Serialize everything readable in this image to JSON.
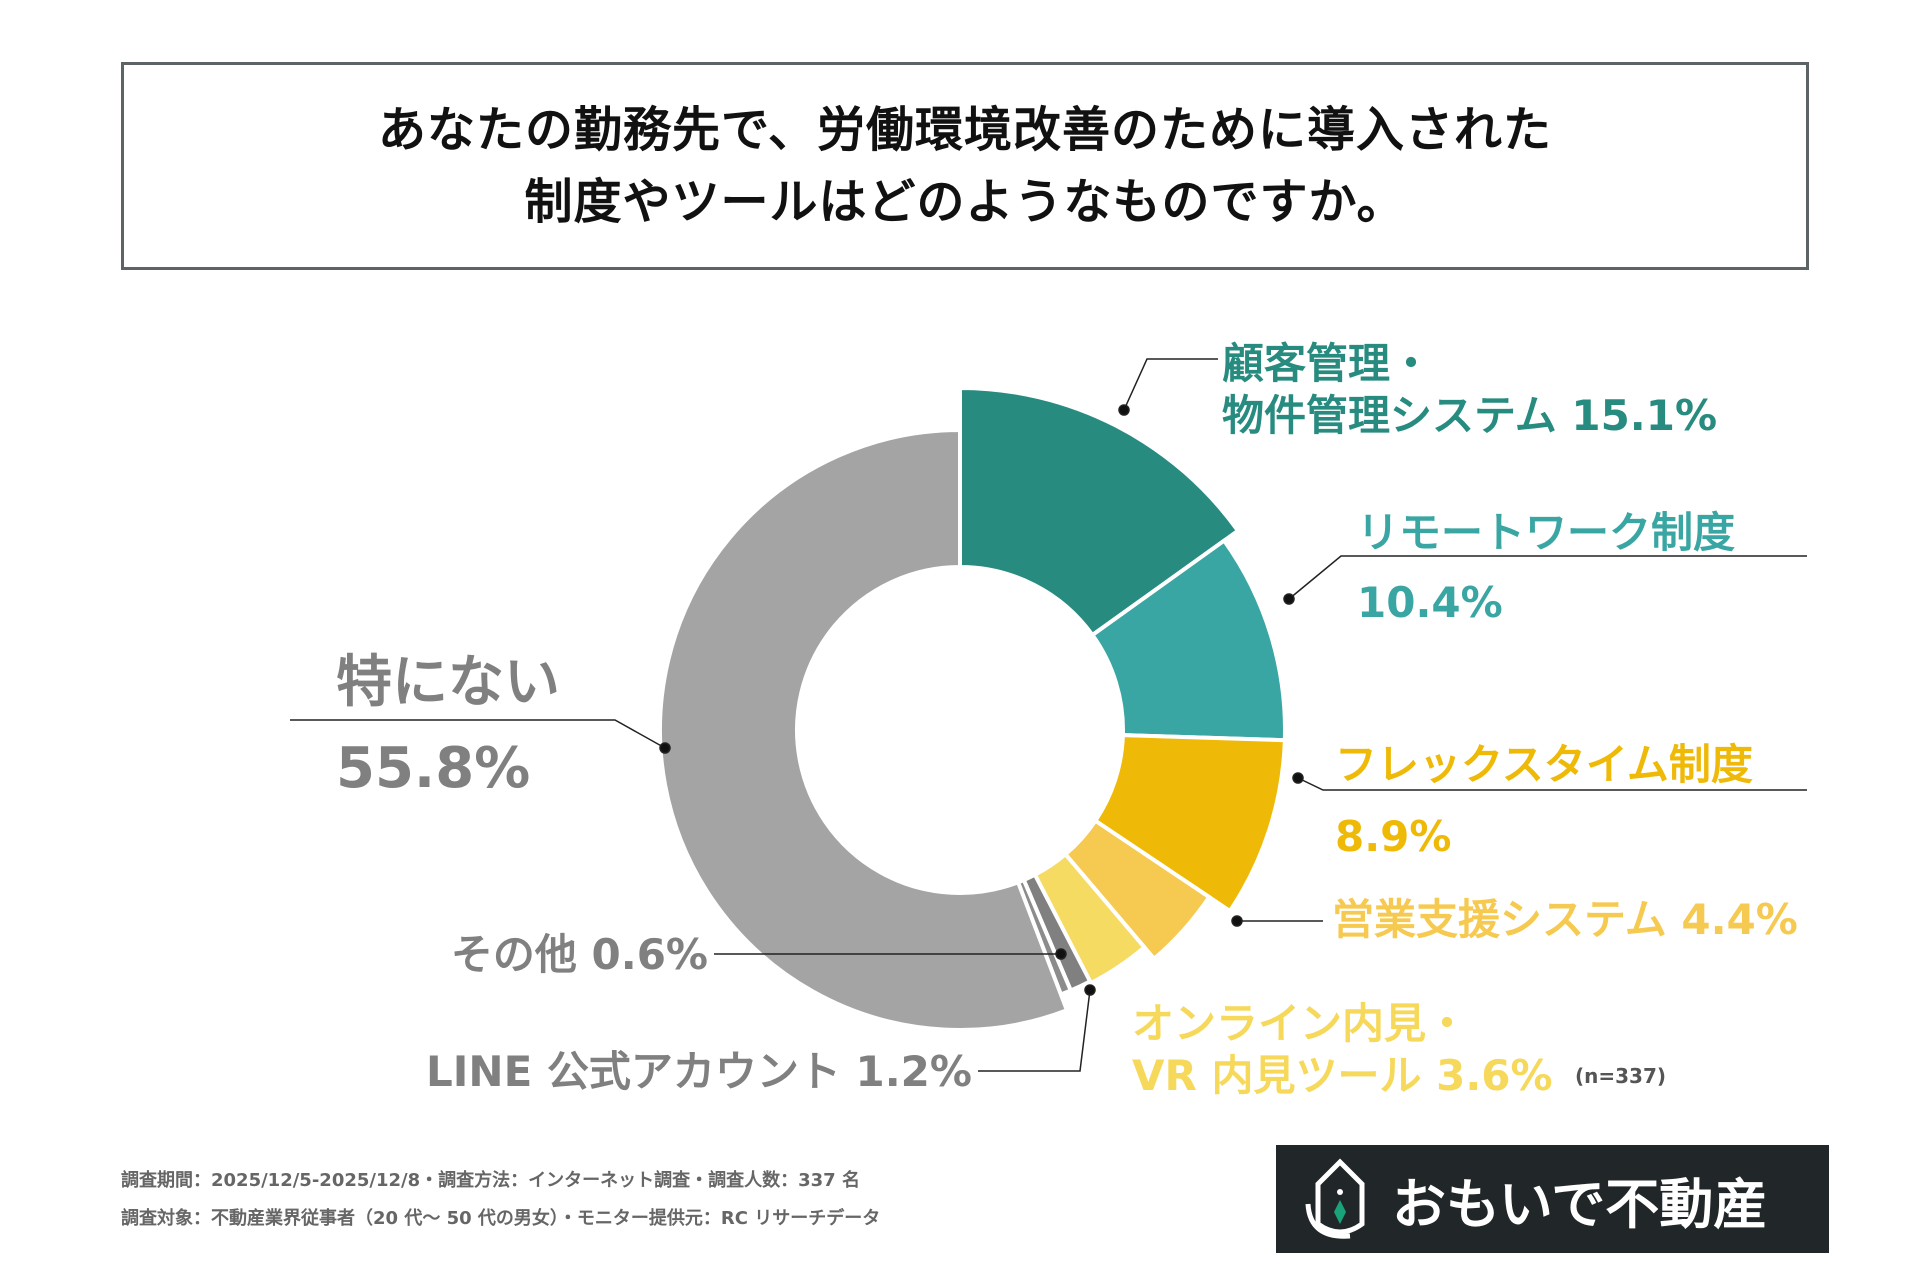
{
  "title": [
    "あなたの勤務先で、労働環境改善のために導入された",
    "制度やツールはどのようなものですか。"
  ],
  "chart_data": {
    "type": "pie",
    "title": "あなたの勤務先で、労働環境改善のために導入された制度やツールはどのようなものですか。",
    "n_label": "(n=337)",
    "slices": [
      {
        "name": "顧客管理・物件管理システム",
        "lines": [
          "顧客管理・",
          "物件管理システム  15.1%"
        ],
        "value": 15.1,
        "color": "#288b80"
      },
      {
        "name": "リモートワーク制度",
        "lines": [
          "リモートワーク制度",
          "10.4%"
        ],
        "value": 10.4,
        "color": "#3aa6a3"
      },
      {
        "name": "フレックスタイム制度",
        "lines": [
          "フレックスタイム制度",
          "8.9%"
        ],
        "value": 8.9,
        "color": "#efb908"
      },
      {
        "name": "営業支援システム",
        "lines": [
          "営業支援システム  4.4%"
        ],
        "value": 4.4,
        "color": "#f6ca50"
      },
      {
        "name": "オンライン内見・VR内見ツール",
        "lines": [
          "オンライン内見・",
          "VR 内見ツール  3.6%"
        ],
        "value": 3.6,
        "color": "#f6db62"
      },
      {
        "name": "LINE公式アカウント",
        "lines": [
          "LINE 公式アカウント  1.2%"
        ],
        "value": 1.2,
        "color": "#808080"
      },
      {
        "name": "その他",
        "lines": [
          "その他  0.6%"
        ],
        "value": 0.6,
        "color": "#8c8c8c"
      },
      {
        "name": "特にない",
        "lines": [
          "特にない",
          "55.8%"
        ],
        "value": 55.8,
        "color": "#a4a4a4"
      }
    ],
    "label_colors": [
      "#288b80",
      "#3aa6a3",
      "#efb908",
      "#f6ca50",
      "#f6d85a",
      "#808080",
      "#808080",
      "#808080"
    ]
  },
  "footer": [
    "調査期間：2025/12/5-2025/12/8・調査方法：インターネット調査・調査人数：337 名",
    "調査対象：不動産業界従事者（20 代〜 50 代の男女）・モニター提供元：RC リサーチデータ"
  ],
  "logo": {
    "text": "おもいで不動産"
  }
}
